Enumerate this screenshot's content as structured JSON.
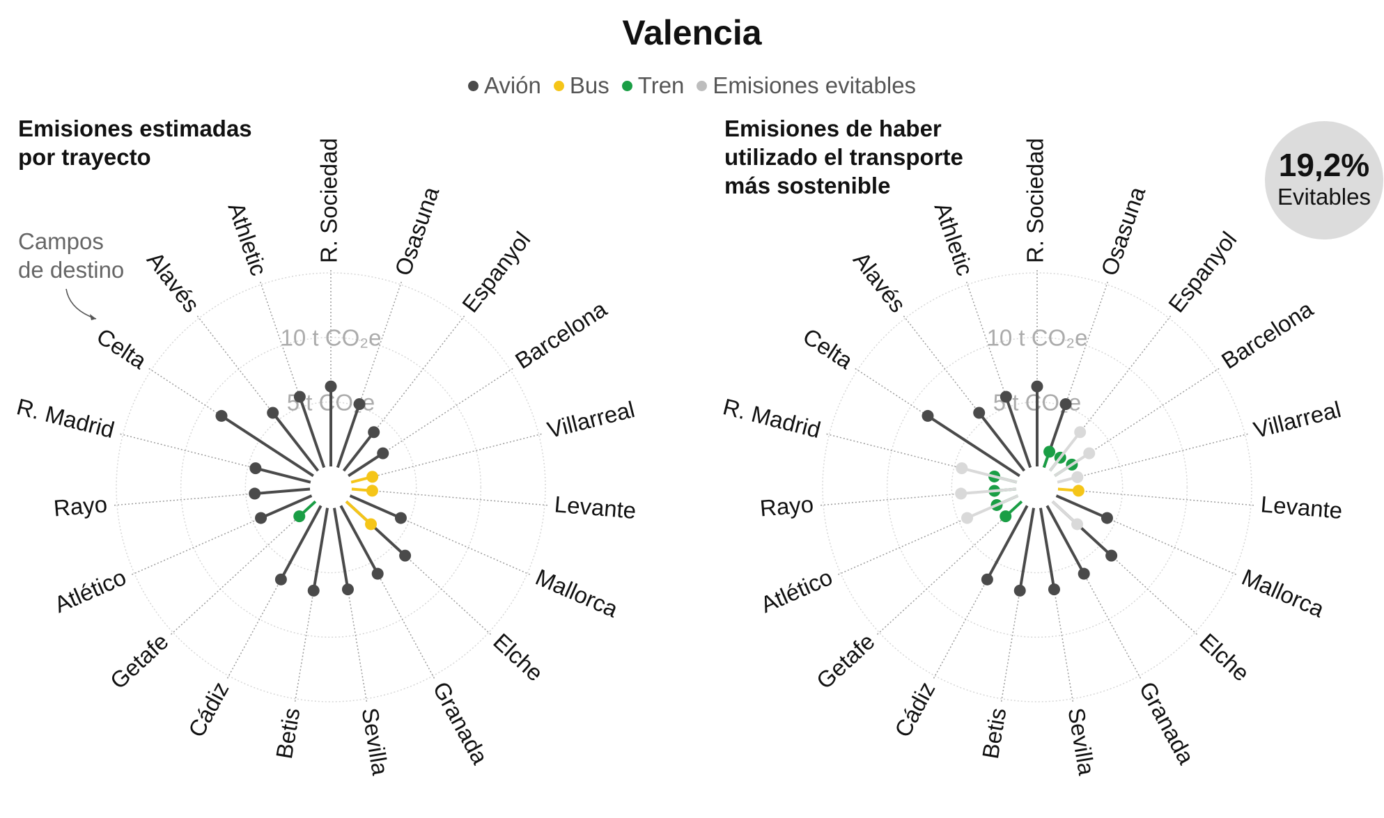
{
  "page": {
    "title": "Valencia"
  },
  "legend": [
    {
      "label": "Avión",
      "color": "#4a4a4a"
    },
    {
      "label": "Bus",
      "color": "#f5c518"
    },
    {
      "label": "Tren",
      "color": "#1a9e45"
    },
    {
      "label": "Emisiones evitables",
      "color": "#bdbdbd"
    }
  ],
  "annotation": "Campos\nde destino",
  "badge": {
    "value": "19,2%",
    "label": "Evitables"
  },
  "chart_data": [
    {
      "type": "polar-lollipop",
      "title": "Emisiones estimadas\npor trayecto",
      "radial_unit": "t CO₂e",
      "rlim": [
        0,
        15
      ],
      "ticks": [
        {
          "value": 5,
          "label": "5 t CO₂e"
        },
        {
          "value": 10,
          "label": "10 t CO₂e"
        }
      ],
      "categories": [
        "R. Sociedad",
        "Osasuna",
        "Espanyol",
        "Barcelona",
        "Villarreal",
        "Levante",
        "Mallorca",
        "Elche",
        "Granada",
        "Sevilla",
        "Betis",
        "Cádiz",
        "Getafe",
        "Atlético",
        "Rayo",
        "R. Madrid",
        "Celta",
        "Alavés",
        "Athletic"
      ],
      "series": [
        {
          "name": "Avión",
          "color": "#4a4a4a",
          "values": [
            6.2,
            5.2,
            3.8,
            3.2,
            null,
            null,
            4.3,
            6.2,
            6.0,
            6.4,
            6.5,
            6.5,
            null,
            4.3,
            4.3,
            4.4,
            8.5,
            5.7,
            5.8
          ]
        },
        {
          "name": "Bus",
          "color": "#f5c518",
          "values": [
            null,
            null,
            null,
            null,
            1.7,
            1.6,
            null,
            2.6,
            null,
            null,
            null,
            null,
            null,
            null,
            null,
            null,
            null,
            null,
            null
          ]
        },
        {
          "name": "Tren",
          "color": "#1a9e45",
          "values": [
            null,
            null,
            null,
            null,
            null,
            null,
            null,
            null,
            null,
            null,
            null,
            null,
            1.7,
            null,
            null,
            null,
            null,
            null,
            null
          ]
        }
      ]
    },
    {
      "type": "polar-lollipop",
      "title": "Emisiones de haber\nutilizado el transporte\nmás sostenible",
      "radial_unit": "t CO₂e",
      "rlim": [
        0,
        15
      ],
      "ticks": [
        {
          "value": 5,
          "label": "5 t CO₂e"
        },
        {
          "value": 10,
          "label": "10 t CO₂e"
        }
      ],
      "categories": [
        "R. Sociedad",
        "Osasuna",
        "Espanyol",
        "Barcelona",
        "Villarreal",
        "Levante",
        "Mallorca",
        "Elche",
        "Granada",
        "Sevilla",
        "Betis",
        "Cádiz",
        "Getafe",
        "Atlético",
        "Rayo",
        "R. Madrid",
        "Celta",
        "Alavés",
        "Athletic"
      ],
      "series": [
        {
          "name": "Avión",
          "color": "#4a4a4a",
          "values": [
            6.2,
            5.2,
            null,
            null,
            null,
            null,
            4.3,
            6.2,
            6.0,
            6.4,
            6.5,
            6.5,
            null,
            null,
            null,
            null,
            8.5,
            5.7,
            5.8
          ]
        },
        {
          "name": "Bus",
          "color": "#f5c518",
          "values": [
            null,
            null,
            null,
            null,
            null,
            1.6,
            null,
            null,
            null,
            null,
            null,
            null,
            null,
            null,
            null,
            null,
            null,
            null,
            null
          ]
        },
        {
          "name": "Tren",
          "color": "#1a9e45",
          "values": [
            null,
            1.3,
            1.3,
            1.6,
            null,
            null,
            null,
            null,
            null,
            null,
            null,
            null,
            1.7,
            1.8,
            1.7,
            1.8,
            null,
            null,
            null
          ]
        },
        {
          "name": "Emisiones evitables",
          "color": "#d9d9d9",
          "values": [
            null,
            null,
            3.8,
            3.2,
            1.6,
            null,
            null,
            2.6,
            null,
            null,
            null,
            null,
            null,
            4.3,
            4.3,
            4.4,
            null,
            null,
            null
          ]
        }
      ]
    }
  ]
}
